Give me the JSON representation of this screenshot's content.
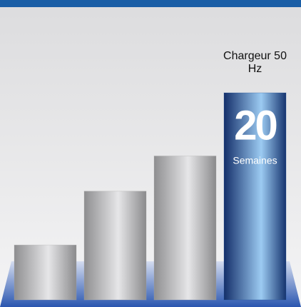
{
  "chart_data": {
    "type": "bar",
    "categories": [
      null,
      null,
      null,
      "Chargeur 50 Hz"
    ],
    "values": [
      5.3,
      10.5,
      13.9,
      20
    ],
    "highlight_index": 3,
    "unit_label": "Semaines",
    "colors": [
      "#a8a8aa",
      "#a8a8aa",
      "#a8a8aa",
      "#1d4f94"
    ],
    "ylim": [
      0,
      20
    ]
  }
}
